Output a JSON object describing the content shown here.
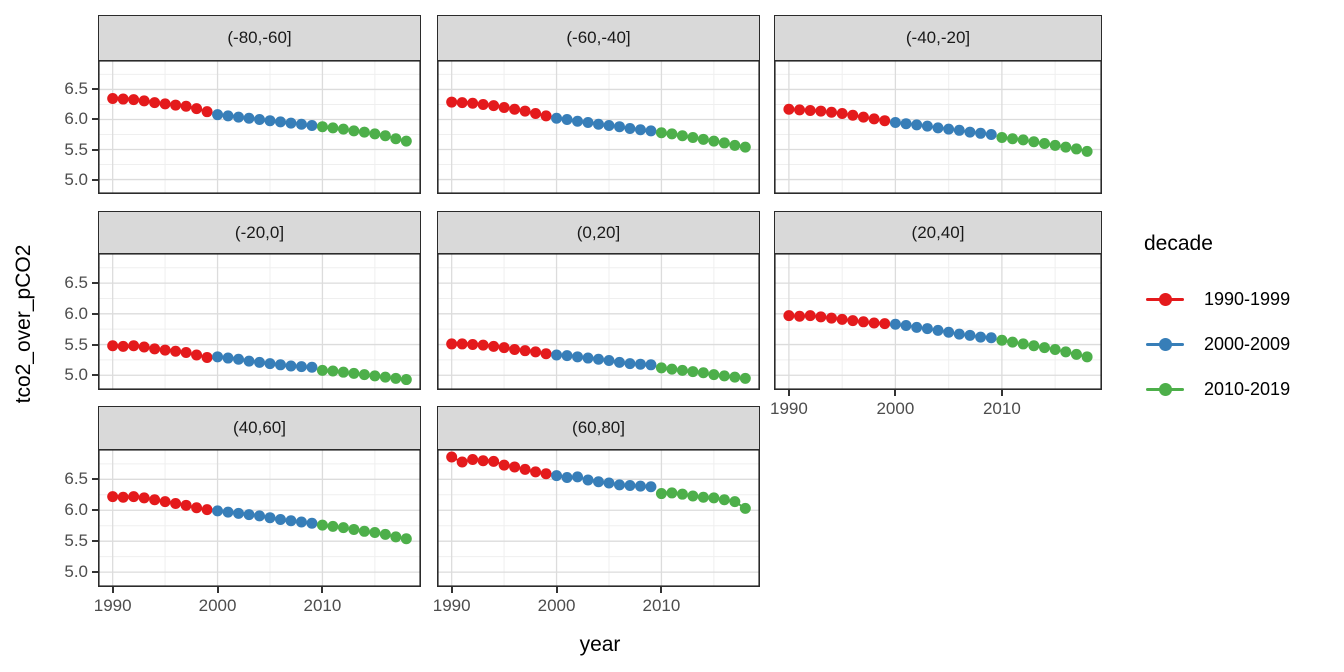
{
  "figure": {
    "ylabel": "tco2_over_pCO2",
    "xlabel": "year",
    "legend": {
      "title": "decade",
      "entries": [
        {
          "label": "1990-1999",
          "color": "#E41A1C"
        },
        {
          "label": "2000-2009",
          "color": "#377EB8"
        },
        {
          "label": "2010-2019",
          "color": "#4DAF4A"
        }
      ]
    }
  },
  "chart_data": {
    "type": "scatter",
    "title": "",
    "xlabel": "year",
    "ylabel": "tco2_over_pCO2",
    "legend_title": "decade",
    "legend_position": "right",
    "grid": "major+minor",
    "facet_variable": "latitude band",
    "x": [
      1990,
      1991,
      1992,
      1993,
      1994,
      1995,
      1996,
      1997,
      1998,
      1999,
      2000,
      2001,
      2002,
      2003,
      2004,
      2005,
      2006,
      2007,
      2008,
      2009,
      2010,
      2011,
      2012,
      2013,
      2014,
      2015,
      2016,
      2017,
      2018
    ],
    "x_ticks": [
      1990,
      2000,
      2010
    ],
    "y_ticks": [
      6.5,
      6.0,
      5.5,
      5.0
    ],
    "x_minor": [
      1995,
      2005,
      2015
    ],
    "y_minor": [
      6.75,
      6.25,
      5.75,
      5.25
    ],
    "x_range": [
      1988.6,
      2019.4
    ],
    "y_range": [
      4.76,
      6.99
    ],
    "decades": [
      {
        "name": "1990-1999",
        "from": 1990,
        "to": 1999,
        "color": "#E41A1C"
      },
      {
        "name": "2000-2009",
        "from": 2000,
        "to": 2009,
        "color": "#377EB8"
      },
      {
        "name": "2010-2019",
        "from": 2010,
        "to": 2019,
        "color": "#4DAF4A"
      }
    ],
    "facets": [
      {
        "label": "(-80,-60]",
        "values": [
          6.35,
          6.34,
          6.33,
          6.31,
          6.28,
          6.26,
          6.24,
          6.22,
          6.18,
          6.13,
          6.08,
          6.06,
          6.04,
          6.02,
          6.0,
          5.98,
          5.96,
          5.94,
          5.92,
          5.9,
          5.88,
          5.86,
          5.84,
          5.81,
          5.79,
          5.76,
          5.73,
          5.68,
          5.64
        ]
      },
      {
        "label": "(-60,-40]",
        "values": [
          6.29,
          6.28,
          6.27,
          6.25,
          6.23,
          6.2,
          6.17,
          6.14,
          6.1,
          6.06,
          6.02,
          6.0,
          5.97,
          5.95,
          5.92,
          5.9,
          5.88,
          5.85,
          5.83,
          5.81,
          5.78,
          5.76,
          5.73,
          5.7,
          5.67,
          5.64,
          5.61,
          5.57,
          5.54
        ]
      },
      {
        "label": "(-40,-20]",
        "values": [
          6.17,
          6.16,
          6.15,
          6.14,
          6.12,
          6.1,
          6.07,
          6.04,
          6.01,
          5.98,
          5.95,
          5.93,
          5.91,
          5.89,
          5.86,
          5.84,
          5.82,
          5.79,
          5.77,
          5.75,
          5.7,
          5.68,
          5.66,
          5.63,
          5.6,
          5.57,
          5.54,
          5.51,
          5.47
        ]
      },
      {
        "label": "(-20,0]",
        "values": [
          5.48,
          5.47,
          5.48,
          5.46,
          5.43,
          5.41,
          5.39,
          5.37,
          5.33,
          5.29,
          5.3,
          5.28,
          5.26,
          5.23,
          5.21,
          5.19,
          5.17,
          5.15,
          5.14,
          5.13,
          5.08,
          5.07,
          5.05,
          5.03,
          5.01,
          4.99,
          4.97,
          4.95,
          4.93
        ]
      },
      {
        "label": "(0,20]",
        "values": [
          5.51,
          5.51,
          5.5,
          5.49,
          5.47,
          5.45,
          5.42,
          5.4,
          5.38,
          5.35,
          5.33,
          5.32,
          5.3,
          5.28,
          5.26,
          5.24,
          5.21,
          5.19,
          5.18,
          5.17,
          5.12,
          5.1,
          5.08,
          5.06,
          5.04,
          5.01,
          4.99,
          4.97,
          4.95
        ]
      },
      {
        "label": "(20,40]",
        "values": [
          5.97,
          5.96,
          5.97,
          5.95,
          5.93,
          5.91,
          5.89,
          5.87,
          5.85,
          5.84,
          5.83,
          5.81,
          5.78,
          5.76,
          5.73,
          5.7,
          5.67,
          5.65,
          5.62,
          5.61,
          5.57,
          5.54,
          5.51,
          5.48,
          5.45,
          5.42,
          5.38,
          5.34,
          5.3
        ]
      },
      {
        "label": "(40,60]",
        "values": [
          6.22,
          6.21,
          6.22,
          6.2,
          6.17,
          6.14,
          6.11,
          6.08,
          6.04,
          6.01,
          5.99,
          5.97,
          5.95,
          5.93,
          5.91,
          5.88,
          5.85,
          5.83,
          5.81,
          5.79,
          5.76,
          5.74,
          5.72,
          5.69,
          5.66,
          5.64,
          5.61,
          5.57,
          5.54
        ]
      },
      {
        "label": "(60,80]",
        "values": [
          6.86,
          6.78,
          6.82,
          6.8,
          6.79,
          6.73,
          6.7,
          6.66,
          6.62,
          6.59,
          6.56,
          6.53,
          6.54,
          6.49,
          6.46,
          6.44,
          6.41,
          6.4,
          6.39,
          6.38,
          6.27,
          6.28,
          6.26,
          6.23,
          6.21,
          6.2,
          6.17,
          6.14,
          6.03
        ]
      }
    ]
  }
}
